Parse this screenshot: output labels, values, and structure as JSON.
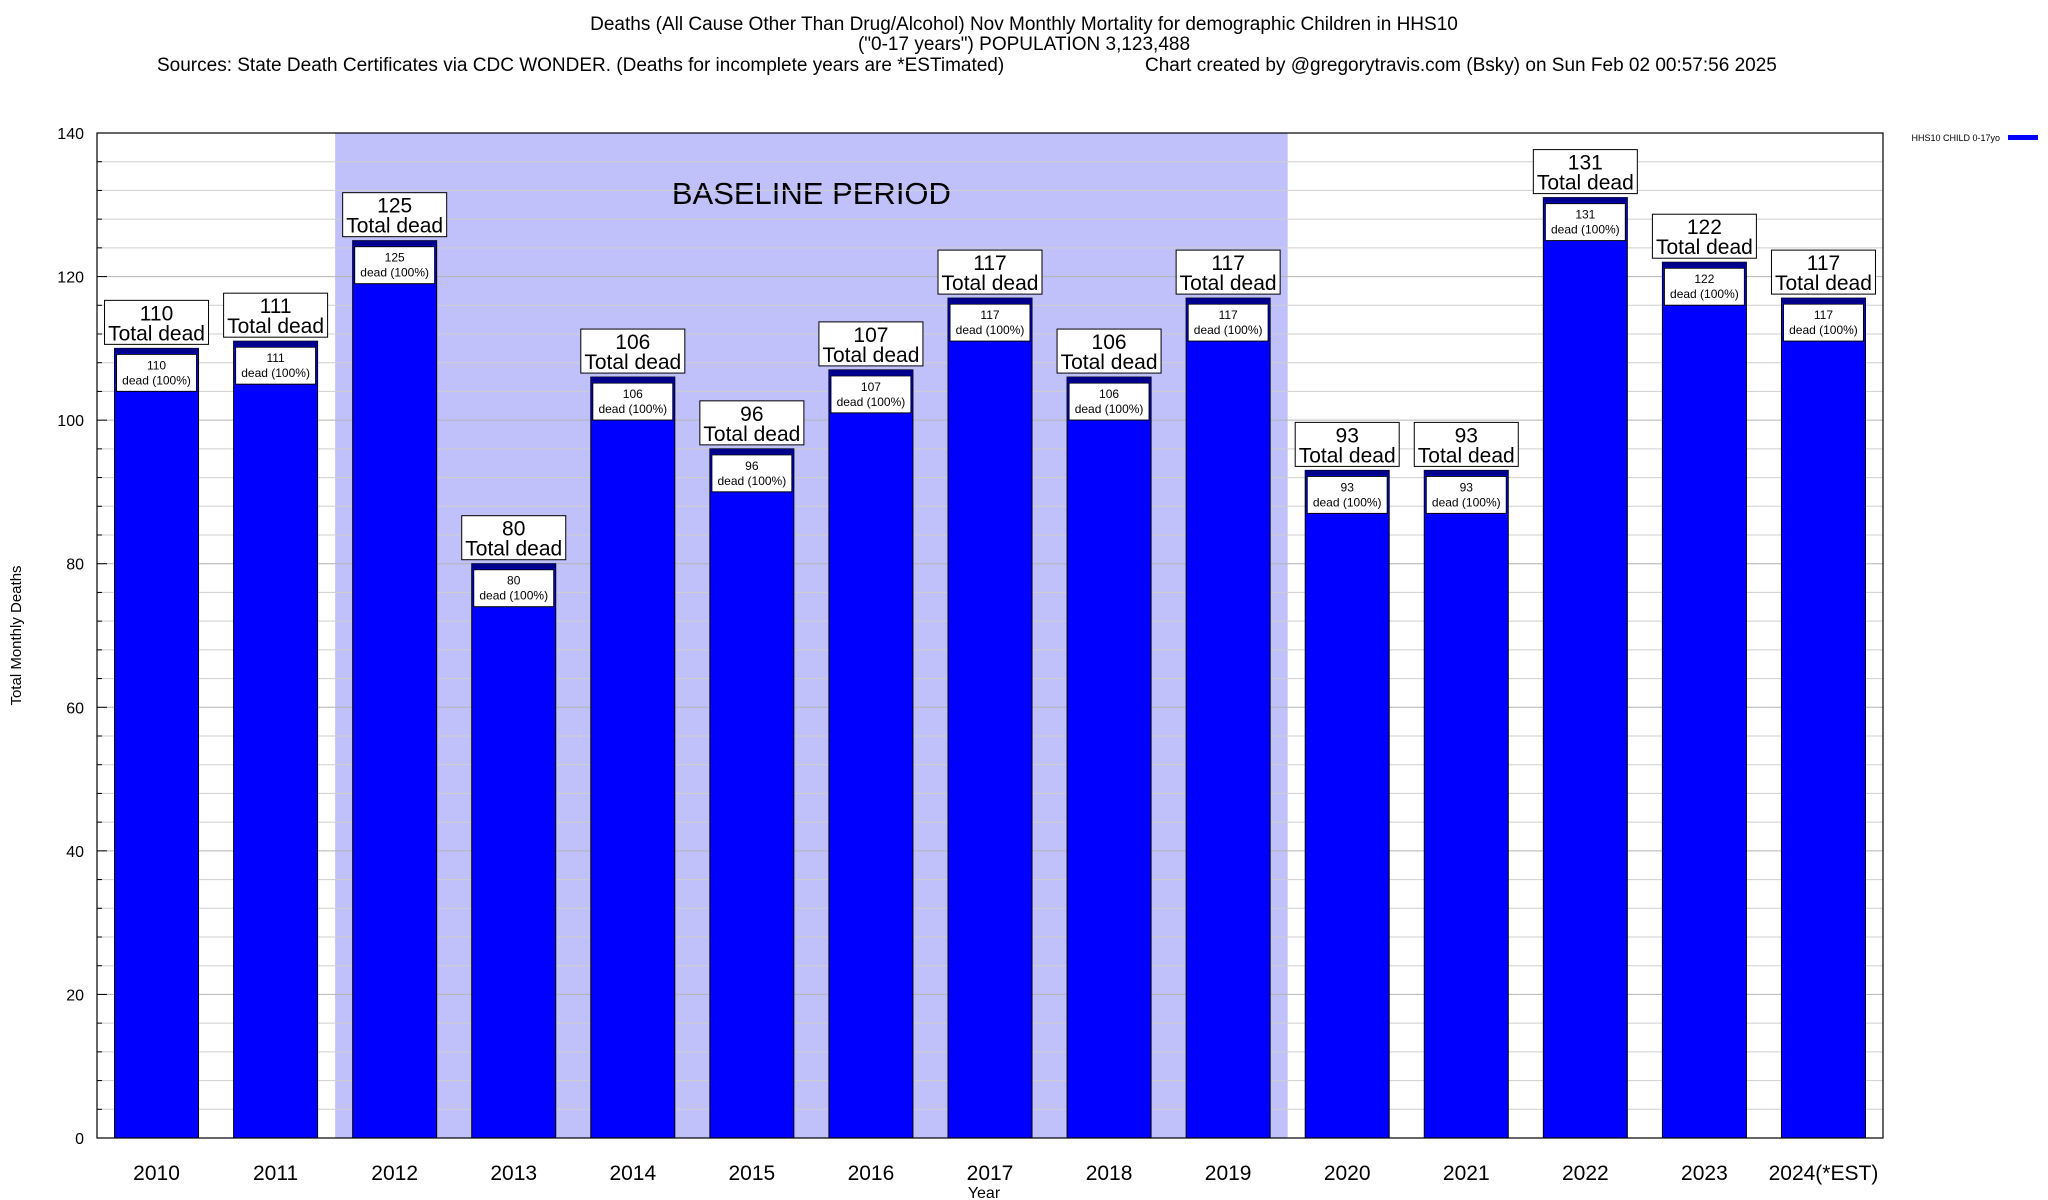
{
  "chart_data": {
    "type": "bar",
    "title": "Deaths (All Cause Other Than Drug/Alcohol) Nov Monthly Mortality for demographic Children in HHS10",
    "subtitle": "(\"0-17 years\") POPULATION 3,123,488",
    "sources": "Sources: State Death Certificates via CDC WONDER. (Deaths for incomplete years are *ESTimated)",
    "credit": "Chart created by @gregorytravis.com (Bsky) on Sun Feb 02 00:57:56 2025",
    "xlabel": "Year",
    "ylabel": "Total Monthly Deaths",
    "ylim": [
      0,
      140
    ],
    "yticks": [
      0,
      20,
      40,
      60,
      80,
      100,
      120,
      140
    ],
    "y_minor_step": 4,
    "grid": true,
    "legend_position": "top-right",
    "categories": [
      "2010",
      "2011",
      "2012",
      "2013",
      "2014",
      "2015",
      "2016",
      "2017",
      "2018",
      "2019",
      "2020",
      "2021",
      "2022",
      "2023",
      "2024(*EST)"
    ],
    "series": [
      {
        "name": "HHS10 CHILD 0-17yo",
        "values": [
          110,
          111,
          125,
          80,
          106,
          96,
          107,
          117,
          106,
          117,
          93,
          93,
          131,
          122,
          117
        ]
      }
    ],
    "top_label_suffix": "Total dead",
    "inner_label_suffix": "dead (100%)",
    "baseline_period": {
      "label": "BASELINE PERIOD",
      "start_category": "2012",
      "end_category": "2019"
    },
    "colors": {
      "bar_fill": "#0000ff",
      "bar_top": "#00008b",
      "baseline_shade": "#c0c0fa"
    }
  }
}
